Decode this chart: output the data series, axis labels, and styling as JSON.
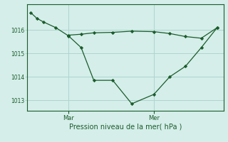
{
  "background_color": "#d5eeea",
  "grid_color": "#aed4cf",
  "line_color": "#1a5c2a",
  "title": "Pression niveau de la mer( hPa )",
  "ylim": [
    1012.55,
    1017.1
  ],
  "yticks": [
    1013,
    1014,
    1015,
    1016
  ],
  "ytick_labels": [
    "1013",
    "1014",
    "1015",
    "1016"
  ],
  "x_mar_pos": 60,
  "x_mer_pos": 195,
  "line1_x": [
    0,
    10,
    20,
    40,
    60,
    80,
    100,
    130,
    160,
    195,
    220,
    245,
    270,
    295
  ],
  "line1_y": [
    1016.75,
    1016.5,
    1016.35,
    1016.1,
    1015.75,
    1015.25,
    1013.85,
    1013.85,
    1012.85,
    1013.25,
    1014.0,
    1014.45,
    1015.25,
    1016.1
  ],
  "line2_x": [
    60,
    80,
    100,
    130,
    160,
    195,
    220,
    245,
    270,
    295
  ],
  "line2_y": [
    1015.78,
    1015.82,
    1015.88,
    1015.9,
    1015.95,
    1015.93,
    1015.85,
    1015.72,
    1015.65,
    1016.1
  ],
  "xlim": [
    -5,
    305
  ],
  "figsize": [
    3.2,
    2.0
  ],
  "dpi": 100
}
